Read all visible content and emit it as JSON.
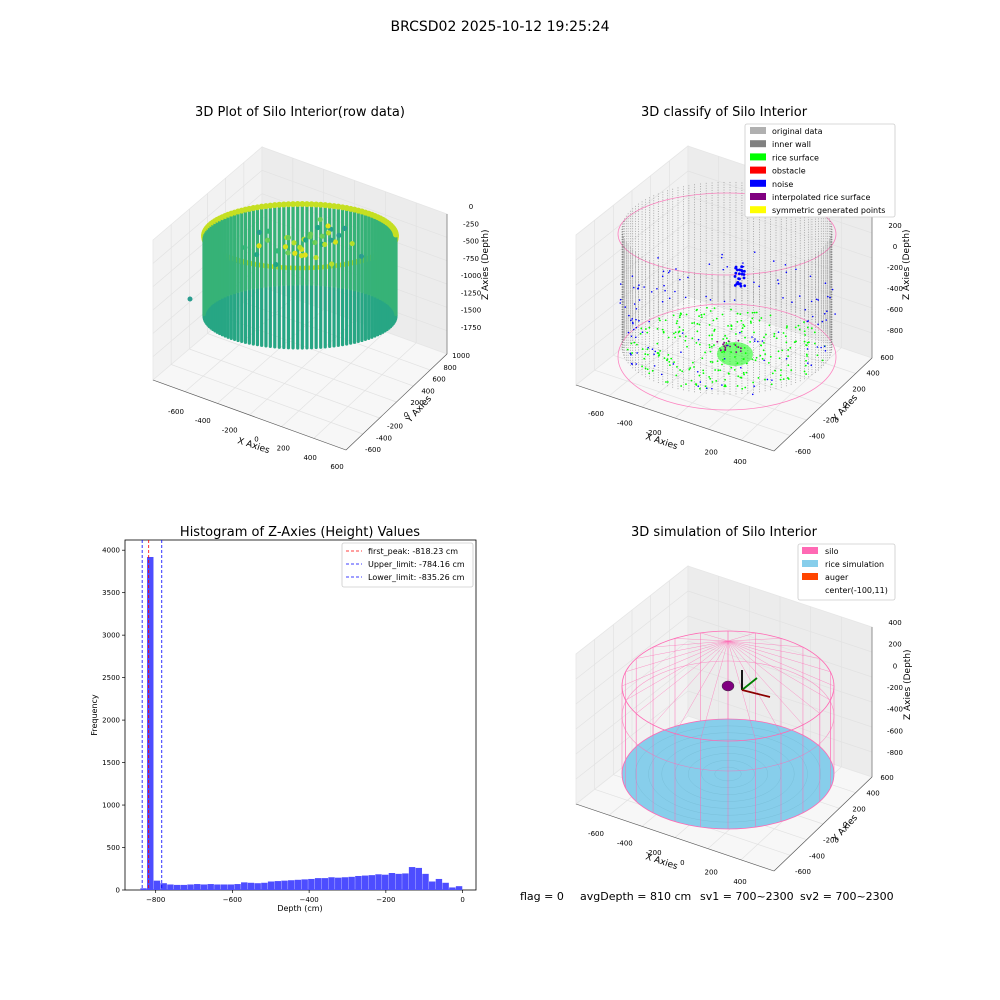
{
  "figure_title": "BRCSD02 2025-10-12 19:25:24",
  "status_line": {
    "flag": "flag = 0",
    "avg_depth": "avgDepth = 810 cm",
    "sv1": "sv1 = 700~2300",
    "sv2": "sv2 = 700~2300"
  },
  "colors": {
    "rice_surface": "#00ff00",
    "obstacle": "#ff0000",
    "noise": "#0000ff",
    "inner_wall": "#808080",
    "original_data": "#b0b0b0",
    "interpolated_rice_surface": "#800080",
    "symmetric_generated_points": "#ffff00",
    "silo": "#ff69b4",
    "rice_simulation": "#87ceeb",
    "auger": "#ff4500",
    "histogram_bar": "#4d4dff",
    "first_peak_line": "#ff0000",
    "limit_line": "#0000ff"
  },
  "chart_data": [
    {
      "type": "scatter",
      "title": "3D Plot of Silo Interior(row data)",
      "xlabel": "X Axies",
      "ylabel": "Y Axies",
      "zlabel": "Z Axies (Depth)",
      "x_ticks": [
        "-600",
        "-400",
        "-200",
        "0",
        "200",
        "400",
        "600"
      ],
      "y_ticks": [
        "-600",
        "-400",
        "-200",
        "0",
        "200",
        "400",
        "600",
        "800",
        "1000"
      ],
      "z_ticks": [
        "0",
        "-250",
        "-500",
        "-750",
        "-1000",
        "-1250",
        "-1500",
        "-1750"
      ],
      "colormap": "viridis"
    },
    {
      "type": "scatter",
      "title": "3D classify of Silo Interior",
      "xlabel": "X Axies",
      "ylabel": "Y Axies",
      "zlabel": "Z Axies (Depth)",
      "x_ticks": [
        "-600",
        "-400",
        "-200",
        "0",
        "200",
        "400"
      ],
      "y_ticks": [
        "-600",
        "-400",
        "-200",
        "0",
        "200",
        "400",
        "600"
      ],
      "z_ticks": [
        "200",
        "0",
        "-200",
        "-400",
        "-600",
        "-800"
      ],
      "legend_position": "top-right",
      "legend": [
        {
          "label": "original data",
          "color": "#b0b0b0"
        },
        {
          "label": "inner wall",
          "color": "#808080"
        },
        {
          "label": "rice surface",
          "color": "#00ff00"
        },
        {
          "label": "obstacle",
          "color": "#ff0000"
        },
        {
          "label": "noise",
          "color": "#0000ff"
        },
        {
          "label": "interpolated rice surface",
          "color": "#800080"
        },
        {
          "label": "symmetric generated points",
          "color": "#ffff00"
        }
      ]
    },
    {
      "type": "bar",
      "title": "Histogram of Z-Axies (Height) Values",
      "xlabel": "Depth (cm)",
      "ylabel": "Frequency",
      "xlim": [
        -880,
        35
      ],
      "ylim": [
        0,
        4120
      ],
      "x_ticks": [
        -800,
        -600,
        -400,
        -200,
        0
      ],
      "y_ticks": [
        0,
        500,
        1000,
        1500,
        2000,
        2500,
        3000,
        3500,
        4000
      ],
      "bin_width": 17.5,
      "x": [
        -840,
        -822.5,
        -805,
        -787.5,
        -770,
        -752.5,
        -735,
        -717.5,
        -700,
        -682.5,
        -665,
        -647.5,
        -630,
        -612.5,
        -595,
        -577.5,
        -560,
        -542.5,
        -525,
        -507.5,
        -490,
        -472.5,
        -455,
        -437.5,
        -420,
        -402.5,
        -385,
        -367.5,
        -350,
        -332.5,
        -315,
        -297.5,
        -280,
        -262.5,
        -245,
        -227.5,
        -210,
        -192.5,
        -175,
        -157.5,
        -140,
        -122.5,
        -105,
        -87.5,
        -70,
        -52.5,
        -35,
        -17.5
      ],
      "values": [
        20,
        3920,
        110,
        80,
        65,
        60,
        60,
        65,
        70,
        65,
        70,
        65,
        65,
        65,
        70,
        90,
        85,
        80,
        85,
        100,
        105,
        110,
        115,
        120,
        125,
        130,
        140,
        140,
        150,
        145,
        150,
        155,
        165,
        170,
        175,
        185,
        180,
        200,
        190,
        195,
        270,
        260,
        190,
        100,
        130,
        85,
        30,
        45
      ],
      "legend_position": "top-right",
      "lines": [
        {
          "name": "first_peak: -818.23 cm",
          "x": -818.23,
          "color": "#ff0000"
        },
        {
          "name": "Upper_limit: -784.16 cm",
          "x": -784.16,
          "color": "#0000ff"
        },
        {
          "name": "Lower_limit: -835.26 cm",
          "x": -835.26,
          "color": "#0000ff"
        }
      ]
    },
    {
      "type": "scatter",
      "title": "3D simulation of Silo Interior",
      "xlabel": "X Axies",
      "ylabel": "Y Axies",
      "zlabel": "Z Axies (Depth)",
      "x_ticks": [
        "-600",
        "-400",
        "-200",
        "0",
        "200",
        "400"
      ],
      "y_ticks": [
        "-600",
        "-400",
        "-200",
        "0",
        "200",
        "400",
        "600"
      ],
      "z_ticks": [
        "400",
        "200",
        "0",
        "-200",
        "-400",
        "-600",
        "-800"
      ],
      "legend_position": "top-right",
      "legend": [
        {
          "label": "silo",
          "color": "#ff69b4"
        },
        {
          "label": "rice simulation",
          "color": "#87ceeb"
        },
        {
          "label": "auger",
          "color": "#ff4500"
        },
        {
          "label": "center(-100,11)",
          "color": ""
        }
      ]
    }
  ]
}
